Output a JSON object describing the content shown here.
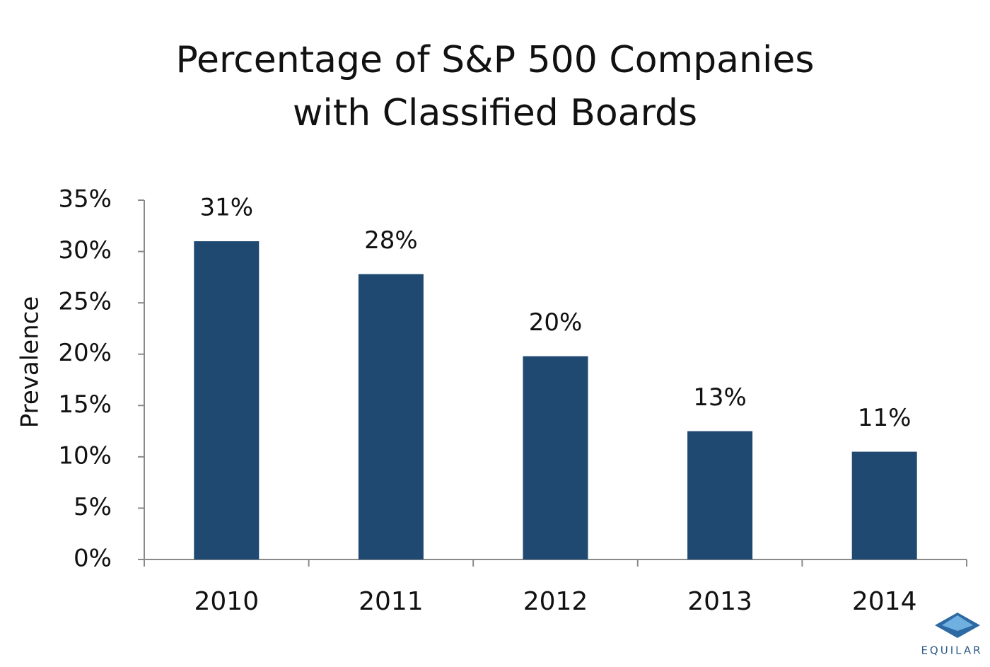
{
  "chart_data": {
    "type": "bar",
    "title": [
      "Percentage of S&P 500 Companies",
      "with Classified Boards"
    ],
    "y_label": "Prevalence",
    "categories": [
      "2010",
      "2011",
      "2012",
      "2013",
      "2014"
    ],
    "values": [
      31,
      27.8,
      19.8,
      12.5,
      10.5
    ],
    "value_labels": [
      "31%",
      "28%",
      "20%",
      "13%",
      "11%"
    ],
    "color": "#1f4971",
    "ylim": [
      0,
      35
    ],
    "yticks": [
      {
        "value": 0,
        "label": "0%"
      },
      {
        "value": 5,
        "label": "5%"
      },
      {
        "value": 10,
        "label": "10%"
      },
      {
        "value": 15,
        "label": "15%"
      },
      {
        "value": 20,
        "label": "20%"
      },
      {
        "value": 25,
        "label": "25%"
      },
      {
        "value": 30,
        "label": "30%"
      },
      {
        "value": 35,
        "label": "35%"
      }
    ],
    "grid": false
  },
  "logo_text": "EQUILAR"
}
